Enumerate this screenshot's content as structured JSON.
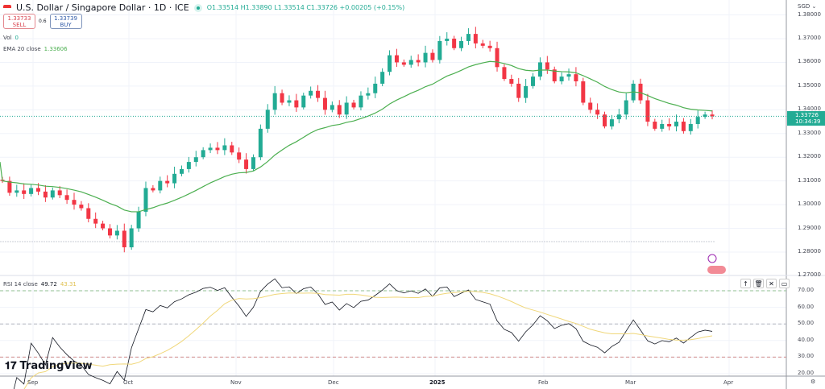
{
  "header": {
    "title": "U.S. Dollar / Singapore Dollar · 1D · ICE",
    "ohlc": "O1.33514 H1.33890 L1.33514 C1.33726 +0.00205 (+0.15%)"
  },
  "trade": {
    "sell_price": "1.33733",
    "sell_label": "SELL",
    "spread": "0.6",
    "buy_price": "1.33739",
    "buy_label": "BUY"
  },
  "volume": {
    "label": "Vol",
    "value": "0"
  },
  "ema": {
    "label": "EMA 20 close",
    "value": "1.33606",
    "period": 20,
    "color": "#4caf50"
  },
  "rsi": {
    "label": "RSI 14 close",
    "value": "49.72",
    "ma_value": "43.31",
    "period": 14,
    "ma_period": 14,
    "line_color": "#131722",
    "ma_color": "#f0d77a",
    "levels": [
      70,
      50,
      30
    ]
  },
  "price_axis": {
    "currency": "SGD",
    "ticks": [
      "1.38000",
      "1.37000",
      "1.36000",
      "1.35000",
      "1.34000",
      "1.33000",
      "1.32000",
      "1.31000",
      "1.30000",
      "1.29000",
      "1.28000",
      "1.27000"
    ],
    "current_price": "1.33726",
    "countdown": "10:34:39"
  },
  "rsi_axis": {
    "ticks": [
      "70.00",
      "60.00",
      "50.00",
      "40.00",
      "30.00",
      "20.00"
    ]
  },
  "time_axis": {
    "labels": [
      "Sep",
      "Oct",
      "Nov",
      "Dec",
      "2025",
      "Feb",
      "Mar",
      "Apr"
    ]
  },
  "rsi_tools": [
    "up-arrow-icon",
    "trash-icon",
    "collapse-icon",
    "maximize-icon"
  ],
  "logo": "TradingView",
  "colors": {
    "up": "#22ab94",
    "down": "#f23645"
  },
  "chart_data": {
    "type": "candlestick",
    "ylim": [
      1.27,
      1.38
    ],
    "closes": [
      1.31,
      1.305,
      1.306,
      1.3045,
      1.307,
      1.3055,
      1.303,
      1.306,
      1.304,
      1.302,
      1.3,
      1.2985,
      1.294,
      1.292,
      1.29,
      1.287,
      1.289,
      1.282,
      1.29,
      1.297,
      1.307,
      1.306,
      1.31,
      1.309,
      1.313,
      1.315,
      1.318,
      1.32,
      1.323,
      1.324,
      1.323,
      1.325,
      1.322,
      1.319,
      1.315,
      1.32,
      1.332,
      1.34,
      1.347,
      1.343,
      1.344,
      1.341,
      1.346,
      1.348,
      1.345,
      1.34,
      1.342,
      1.338,
      1.343,
      1.341,
      1.346,
      1.347,
      1.351,
      1.356,
      1.363,
      1.36,
      1.359,
      1.361,
      1.36,
      1.364,
      1.361,
      1.369,
      1.37,
      1.366,
      1.369,
      1.372,
      1.368,
      1.367,
      1.366,
      1.358,
      1.353,
      1.351,
      1.345,
      1.35,
      1.354,
      1.36,
      1.357,
      1.352,
      1.354,
      1.355,
      1.352,
      1.343,
      1.34,
      1.338,
      1.333,
      1.336,
      1.338,
      1.344,
      1.351,
      1.344,
      1.335,
      1.332,
      1.334,
      1.333,
      1.335,
      1.331,
      1.334,
      1.337,
      1.338,
      1.33726
    ]
  }
}
